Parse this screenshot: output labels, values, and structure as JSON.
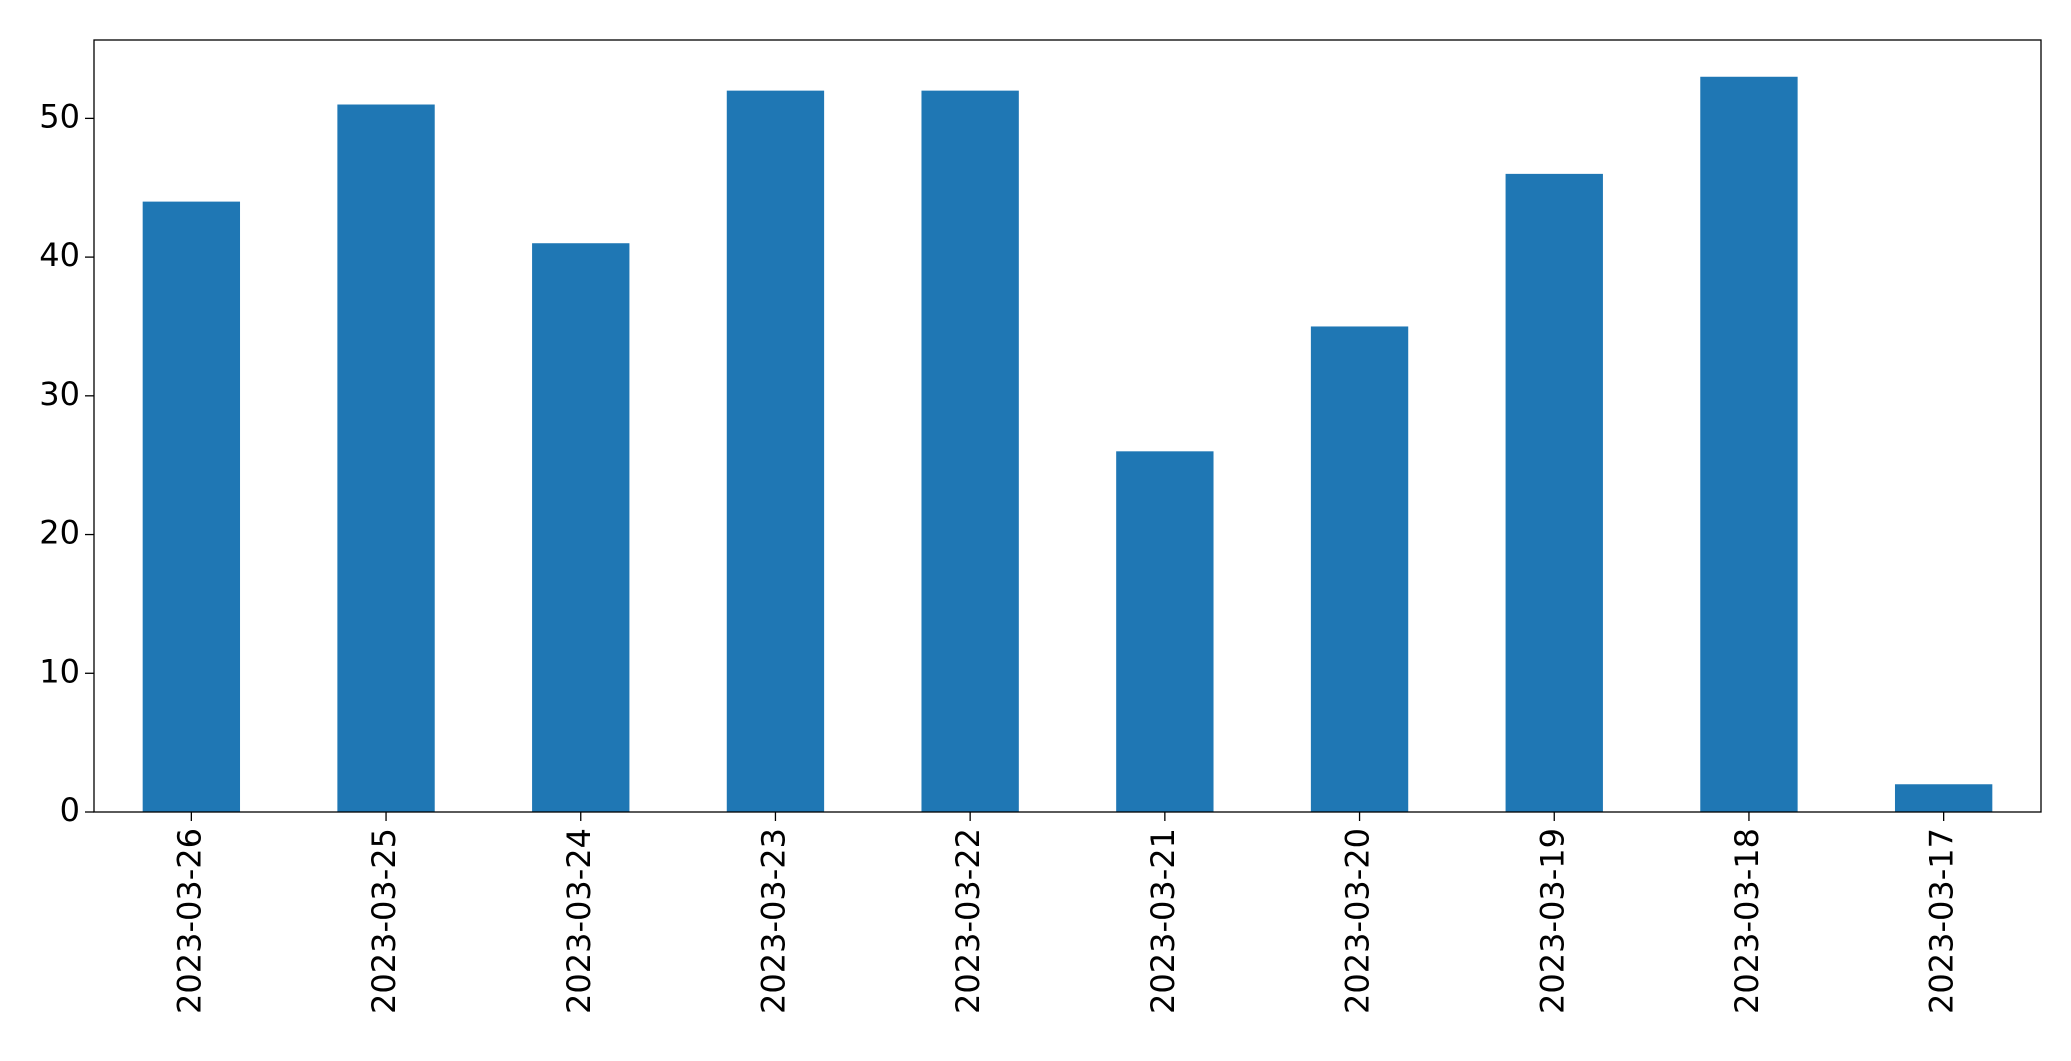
{
  "chart_data": {
    "type": "bar",
    "categories": [
      "2023-03-26",
      "2023-03-25",
      "2023-03-24",
      "2023-03-23",
      "2023-03-22",
      "2023-03-21",
      "2023-03-20",
      "2023-03-19",
      "2023-03-18",
      "2023-03-17"
    ],
    "values": [
      44,
      51,
      41,
      52,
      52,
      26,
      35,
      46,
      53,
      2
    ],
    "color": "#1f77b4",
    "ylim": [
      0,
      55.65
    ],
    "yticks": [
      0,
      10,
      20,
      30,
      40,
      50
    ],
    "grid": false
  }
}
